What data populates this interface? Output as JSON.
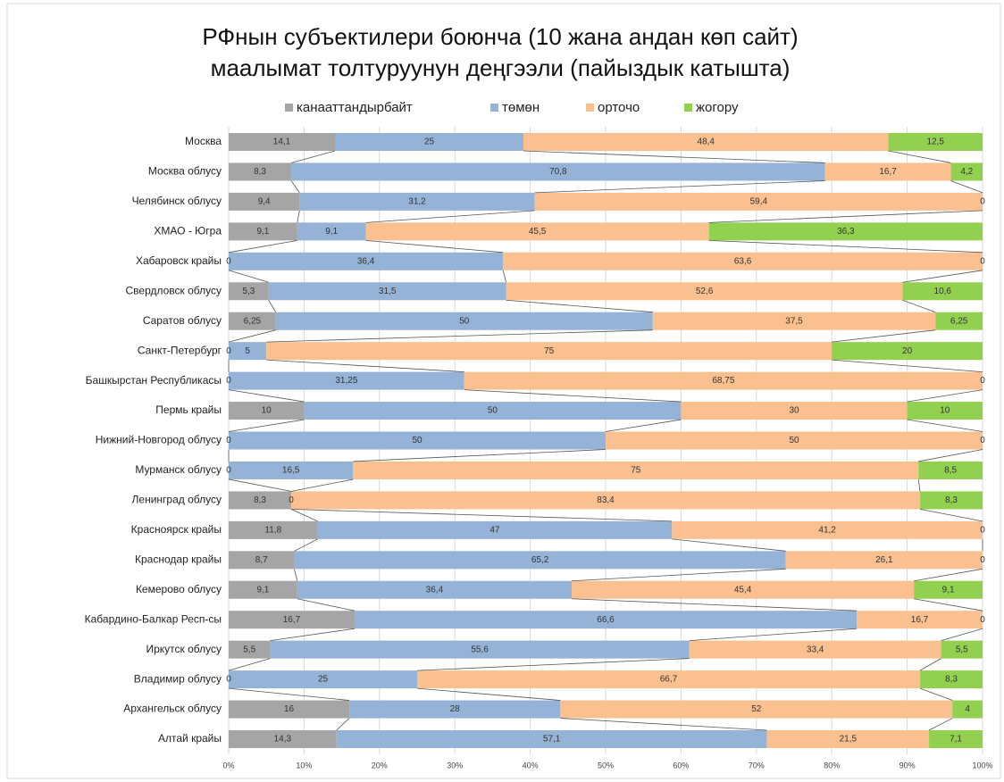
{
  "chart_data": {
    "type": "stacked_bar_horizontal_100",
    "title": "РФнын субъектилери боюнча (10 жана андан көп сайт)",
    "subtitle": "маалымат толтуруунун деңгээли (пайыздык катышта)",
    "categories": [
      "Москва",
      "Москва облусу",
      "Челябинск облусу",
      "ХМАО - Югра",
      "Хабаровск крайы",
      "Свердловск облусу",
      "Саратов облусу",
      "Санкт-Петербург",
      "Башкырстан Республикасы",
      "Пермь крайы",
      "Нижний-Новгород облусу",
      "Мурманск облусу",
      "Ленинград облусу",
      "Красноярск крайы",
      "Краснодар крайы",
      "Кемерово облусу",
      "Кабардино-Балкар Респ-сы",
      "Иркутск облусу",
      "Владимир облусу",
      "Архангельск облусу",
      "Алтай крайы"
    ],
    "series": [
      {
        "name": "канааттандырбайт",
        "color": "#a5a5a5",
        "values": [
          14.1,
          8.3,
          9.4,
          9.1,
          0,
          5.3,
          6.25,
          0,
          0,
          10,
          0,
          0,
          8.3,
          11.8,
          8.7,
          9.1,
          16.7,
          5.5,
          0,
          16,
          14.3
        ],
        "value_labels": [
          "14,1",
          "8,3",
          "9,4",
          "9,1",
          "0",
          "5,3",
          "6,25",
          "0",
          "0",
          "10",
          "0",
          "0",
          "8,3",
          "11,8",
          "8,7",
          "9,1",
          "16,7",
          "5,5",
          "0",
          "16",
          "14,3"
        ]
      },
      {
        "name": "төмөн",
        "color": "#95b3d7",
        "values": [
          25,
          70.8,
          31.2,
          9.1,
          36.4,
          31.5,
          50,
          5,
          31.25,
          50,
          50,
          16.5,
          0,
          47,
          65.2,
          36.4,
          66.6,
          55.6,
          25,
          28,
          57.1
        ],
        "value_labels": [
          "25",
          "70,8",
          "31,2",
          "9,1",
          "36,4",
          "31,5",
          "50",
          "5",
          "31,25",
          "50",
          "50",
          "16,5",
          "0",
          "47",
          "65,2",
          "36,4",
          "66,6",
          "55,6",
          "25",
          "28",
          "57,1"
        ]
      },
      {
        "name": "орточо",
        "color": "#fac090",
        "values": [
          48.4,
          16.7,
          59.4,
          45.5,
          63.6,
          52.6,
          37.5,
          75,
          68.75,
          30,
          50,
          75,
          83.4,
          41.2,
          26.1,
          45.4,
          16.7,
          33.4,
          66.7,
          52,
          21.5
        ],
        "value_labels": [
          "48,4",
          "16,7",
          "59,4",
          "45,5",
          "63,6",
          "52,6",
          "37,5",
          "75",
          "68,75",
          "30",
          "50",
          "75",
          "83,4",
          "41,2",
          "26,1",
          "45,4",
          "16,7",
          "33,4",
          "66,7",
          "52",
          "21,5"
        ]
      },
      {
        "name": "жогору",
        "color": "#92d050",
        "values": [
          12.5,
          4.2,
          0,
          36.3,
          0,
          10.6,
          6.25,
          20,
          0,
          10,
          0,
          8.5,
          8.3,
          0,
          0,
          9.1,
          0,
          5.5,
          8.3,
          4,
          7.1
        ],
        "value_labels": [
          "12,5",
          "4,2",
          "0",
          "36,3",
          "0",
          "10,6",
          "6,25",
          "20",
          "0",
          "10",
          "0",
          "8,5",
          "8,3",
          "0",
          "0",
          "9,1",
          "0",
          "5,5",
          "8,3",
          "4",
          "7,1"
        ]
      }
    ],
    "xlim": [
      0,
      100
    ],
    "xticks": [
      {
        "value": 0,
        "label": "0%"
      },
      {
        "value": 10,
        "label": "10%"
      },
      {
        "value": 20,
        "label": "20%"
      },
      {
        "value": 30,
        "label": "30%"
      },
      {
        "value": 40,
        "label": "40%"
      },
      {
        "value": 50,
        "label": "50%"
      },
      {
        "value": 60,
        "label": "60%"
      },
      {
        "value": 70,
        "label": "70%"
      },
      {
        "value": 80,
        "label": "80%"
      },
      {
        "value": 90,
        "label": "90%"
      },
      {
        "value": 100,
        "label": "100%"
      }
    ],
    "grid": true,
    "legend": "top"
  }
}
